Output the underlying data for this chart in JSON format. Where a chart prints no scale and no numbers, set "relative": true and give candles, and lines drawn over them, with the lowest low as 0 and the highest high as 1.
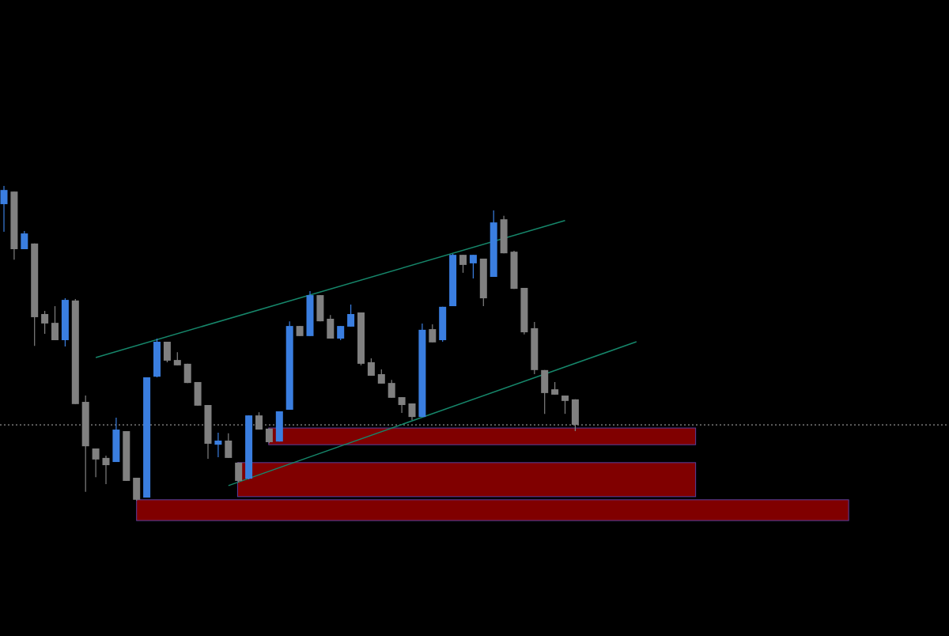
{
  "chart_data": {
    "type": "candlestick",
    "relative": true,
    "categories": [
      null,
      null,
      null,
      null,
      null,
      null,
      null,
      null,
      null,
      null,
      null,
      null,
      null,
      null,
      null,
      null,
      null,
      null,
      null,
      null,
      null,
      null,
      null,
      null,
      null,
      null,
      null,
      null,
      null,
      null,
      null,
      null,
      null,
      null,
      null,
      null,
      null,
      null,
      null,
      null,
      null,
      null,
      null,
      null,
      null,
      null,
      null,
      null,
      null,
      null,
      null,
      null,
      null,
      null,
      null,
      null,
      null,
      null,
      null,
      null,
      null,
      null,
      null,
      null,
      null,
      null,
      null,
      null,
      null,
      null,
      null,
      null,
      null,
      null,
      null,
      null,
      null,
      null,
      null,
      null,
      null,
      null,
      null,
      null,
      null,
      null,
      null,
      null,
      null,
      null,
      null,
      null,
      null
    ],
    "ohlc": [
      [
        0.942,
        1,
        0.854,
        0.987
      ],
      [
        0.982,
        0.982,
        0.766,
        0.799
      ],
      [
        0.799,
        0.857,
        0.799,
        0.849
      ],
      [
        0.817,
        0.817,
        0.492,
        0.583
      ],
      [
        0.593,
        0.603,
        0.53,
        0.563
      ],
      [
        0.565,
        0.618,
        0.51,
        0.51
      ],
      [
        0.51,
        0.643,
        0.49,
        0.638
      ],
      [
        0.636,
        0.641,
        0.307,
        0.307
      ],
      [
        0.314,
        0.334,
        0.028,
        0.173
      ],
      [
        0.166,
        0.166,
        0.075,
        0.131
      ],
      [
        0.136,
        0.143,
        0.053,
        0.113
      ],
      [
        0.123,
        0.264,
        0.123,
        0.226
      ],
      [
        0.221,
        0.221,
        0.063,
        0.063
      ],
      [
        0.073,
        0.073,
        0,
        0.003
      ],
      [
        0.01,
        0.392,
        0.01,
        0.392
      ],
      [
        0.394,
        0.515,
        0.392,
        0.505
      ],
      [
        0.505,
        0.505,
        0.44,
        0.445
      ],
      [
        0.447,
        0.472,
        0.43,
        0.43
      ],
      [
        0.435,
        0.435,
        0.374,
        0.374
      ],
      [
        0.377,
        0.377,
        0.302,
        0.302
      ],
      [
        0.304,
        0.304,
        0.133,
        0.181
      ],
      [
        0.178,
        0.216,
        0.138,
        0.191
      ],
      [
        0.191,
        0.214,
        0.136,
        0.136
      ],
      [
        0.121,
        0.121,
        0.058,
        0.063
      ],
      [
        0.07,
        0.271,
        0.068,
        0.271
      ],
      [
        0.271,
        0.281,
        0.226,
        0.226
      ],
      [
        0.229,
        0.229,
        0.183,
        0.186
      ],
      [
        0.188,
        0.284,
        0.188,
        0.284
      ],
      [
        0.289,
        0.57,
        0.289,
        0.555
      ],
      [
        0.555,
        0.555,
        0.523,
        0.523
      ],
      [
        0.523,
        0.666,
        0.523,
        0.653
      ],
      [
        0.653,
        0.653,
        0.57,
        0.57
      ],
      [
        0.578,
        0.59,
        0.515,
        0.515
      ],
      [
        0.515,
        0.555,
        0.51,
        0.555
      ],
      [
        0.553,
        0.623,
        0.553,
        0.593
      ],
      [
        0.598,
        0.598,
        0.43,
        0.435
      ],
      [
        0.44,
        0.452,
        0.397,
        0.397
      ],
      [
        0.402,
        0.417,
        0.372,
        0.372
      ],
      [
        0.374,
        0.384,
        0.327,
        0.327
      ],
      [
        0.329,
        0.329,
        0.279,
        0.304
      ],
      [
        0.309,
        0.309,
        0.256,
        0.266
      ],
      [
        0.266,
        0.563,
        0.266,
        0.543
      ],
      [
        0.545,
        0.56,
        0.503,
        0.503
      ],
      [
        0.51,
        0.616,
        0.505,
        0.616
      ],
      [
        0.618,
        0.784,
        0.618,
        0.781
      ],
      [
        0.781,
        0.781,
        0.724,
        0.749
      ],
      [
        0.754,
        0.781,
        0.706,
        0.781
      ],
      [
        0.769,
        0.769,
        0.618,
        0.643
      ],
      [
        0.711,
        0.922,
        0.711,
        0.884
      ],
      [
        0.894,
        0.905,
        0.786,
        0.786
      ],
      [
        0.791,
        0.794,
        0.673,
        0.673
      ],
      [
        0.676,
        0.676,
        0.528,
        0.535
      ],
      [
        0.548,
        0.568,
        0.402,
        0.415
      ],
      [
        0.415,
        0.415,
        0.276,
        0.342
      ],
      [
        0.354,
        0.377,
        0.337,
        0.337
      ],
      [
        0.334,
        0.334,
        0.276,
        0.317
      ],
      [
        0.322,
        0.322,
        0.221,
        0.241
      ],
      null,
      null,
      null,
      null,
      null,
      null,
      null,
      null,
      null,
      null,
      null,
      null,
      null,
      null,
      null,
      null,
      null,
      null,
      null,
      null,
      null,
      null,
      null,
      null,
      null,
      null,
      null,
      null,
      null,
      null,
      null,
      null,
      null,
      null,
      null,
      null
    ],
    "colors": [
      "#3a7ee0",
      "#808080",
      "#3a7ee0",
      "#808080",
      "#808080",
      "#808080",
      "#3a7ee0",
      "#808080",
      "#808080",
      "#808080",
      "#808080",
      "#3a7ee0",
      "#808080",
      "#808080",
      "#3a7ee0",
      "#3a7ee0",
      "#808080",
      "#808080",
      "#808080",
      "#808080",
      "#808080",
      "#3a7ee0",
      "#808080",
      "#808080",
      "#3a7ee0",
      "#808080",
      "#808080",
      "#3a7ee0",
      "#3a7ee0",
      "#808080",
      "#3a7ee0",
      "#808080",
      "#808080",
      "#3a7ee0",
      "#3a7ee0",
      "#808080",
      "#808080",
      "#808080",
      "#808080",
      "#808080",
      "#808080",
      "#3a7ee0",
      "#808080",
      "#3a7ee0",
      "#3a7ee0",
      "#808080",
      "#3a7ee0",
      "#808080",
      "#3a7ee0",
      "#808080",
      "#808080",
      "#808080",
      "#808080",
      "#808080",
      "#808080",
      "#808080",
      "#808080",
      null,
      null,
      null,
      null,
      null,
      null,
      null,
      null,
      null,
      null,
      null,
      null,
      null,
      null,
      null,
      null,
      null,
      null,
      null,
      null,
      null,
      null,
      null,
      null,
      null,
      null,
      null,
      null,
      null,
      null,
      null,
      null,
      null,
      null,
      null,
      null
    ],
    "series": [
      {
        "type": "line",
        "color": "#16866a",
        "values": [
          null,
          null,
          null,
          null,
          null,
          null,
          null,
          null,
          null,
          0.455,
          null,
          null,
          null,
          null,
          null,
          null,
          null,
          null,
          null,
          null,
          null,
          null,
          null,
          null,
          null,
          null,
          null,
          null,
          null,
          null,
          null,
          null,
          null,
          null,
          null,
          null,
          null,
          null,
          null,
          null,
          null,
          null,
          null,
          null,
          null,
          null,
          null,
          null,
          null,
          null,
          null,
          null,
          null,
          null,
          null,
          0.89,
          null,
          null,
          null,
          null,
          null,
          null,
          null,
          null,
          null,
          null,
          null,
          null,
          null,
          null,
          null,
          null,
          null,
          null,
          null,
          null,
          null,
          null,
          null,
          null,
          null,
          null,
          null,
          null,
          null,
          null,
          null,
          null,
          null,
          null,
          null,
          null,
          null
        ]
      },
      {
        "type": "line",
        "color": "#16866a",
        "values": [
          null,
          null,
          null,
          null,
          null,
          null,
          null,
          null,
          null,
          null,
          null,
          null,
          null,
          null,
          null,
          null,
          null,
          null,
          null,
          null,
          null,
          null,
          0.048,
          null,
          null,
          null,
          null,
          null,
          null,
          null,
          null,
          null,
          null,
          null,
          null,
          null,
          null,
          null,
          null,
          null,
          null,
          null,
          null,
          null,
          null,
          null,
          null,
          null,
          null,
          null,
          null,
          null,
          null,
          null,
          null,
          null,
          null,
          null,
          null,
          null,
          null,
          null,
          0.505,
          null,
          null,
          null,
          null,
          null,
          null,
          null,
          null,
          null,
          null,
          null,
          null,
          null,
          null,
          null,
          null,
          null,
          null,
          null,
          null,
          null,
          null,
          null,
          null,
          null,
          null,
          null,
          null,
          null,
          null
        ]
      }
    ],
    "ref_lines": [
      {
        "axis": "y",
        "value": 0.241,
        "color": "#b4b4b4",
        "line_style": "dotted"
      }
    ],
    "bands": [
      {
        "axis": "y",
        "from": 0.178,
        "to": 0.231,
        "color": "#800000"
      },
      {
        "axis": "y",
        "from": 0.013,
        "to": 0.121,
        "color": "#800000"
      },
      {
        "axis": "y",
        "from": -0.063,
        "to": 0.003,
        "color": "#800000"
      }
    ]
  }
}
